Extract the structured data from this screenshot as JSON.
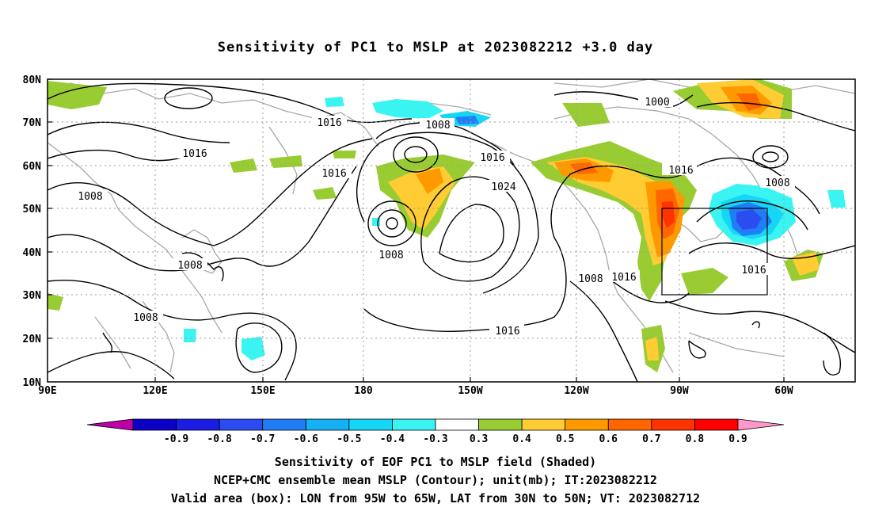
{
  "title": "Sensitivity of PC1 to MSLP at 2023082212 +3.0 day",
  "map": {
    "lat_labels": [
      "80N",
      "70N",
      "60N",
      "50N",
      "40N",
      "30N",
      "20N",
      "10N"
    ],
    "lon_labels": [
      "90E",
      "120E",
      "150E",
      "180",
      "150W",
      "120W",
      "90W",
      "60W"
    ],
    "contour_labels": [
      "1000",
      "1016",
      "1008",
      "1016",
      "1008",
      "1016",
      "1016",
      "1024",
      "1008",
      "1008",
      "1016",
      "1008",
      "1008",
      "1016",
      "1016",
      "1008",
      "1016"
    ],
    "box": {
      "lon_from": "95W",
      "lon_to": "65W",
      "lat_from": "30N",
      "lat_to": "50N"
    }
  },
  "colorbar": {
    "labels": [
      "-0.9",
      "-0.8",
      "-0.7",
      "-0.6",
      "-0.5",
      "-0.4",
      "-0.3",
      "0.3",
      "0.4",
      "0.5",
      "0.6",
      "0.7",
      "0.8",
      "0.9"
    ],
    "colors": [
      "#c000a8",
      "#0b00c6",
      "#1b1de6",
      "#2a4cf0",
      "#1f7ef5",
      "#15b0f5",
      "#16d6f6",
      "#3af4f2",
      "#ffffff",
      "#99cc33",
      "#ffcc33",
      "#ff9900",
      "#ff6600",
      "#ff3300",
      "#ff0000",
      "#ff99cc"
    ]
  },
  "captions": {
    "line1": "Sensitivity of EOF PC1 to MSLP field (Shaded)",
    "line2": "NCEP+CMC ensemble mean MSLP (Contour); unit(mb); IT:2023082212",
    "line3": "Valid area (box): LON from 95W to 65W, LAT from 30N to 50N; VT: 2023082712"
  }
}
